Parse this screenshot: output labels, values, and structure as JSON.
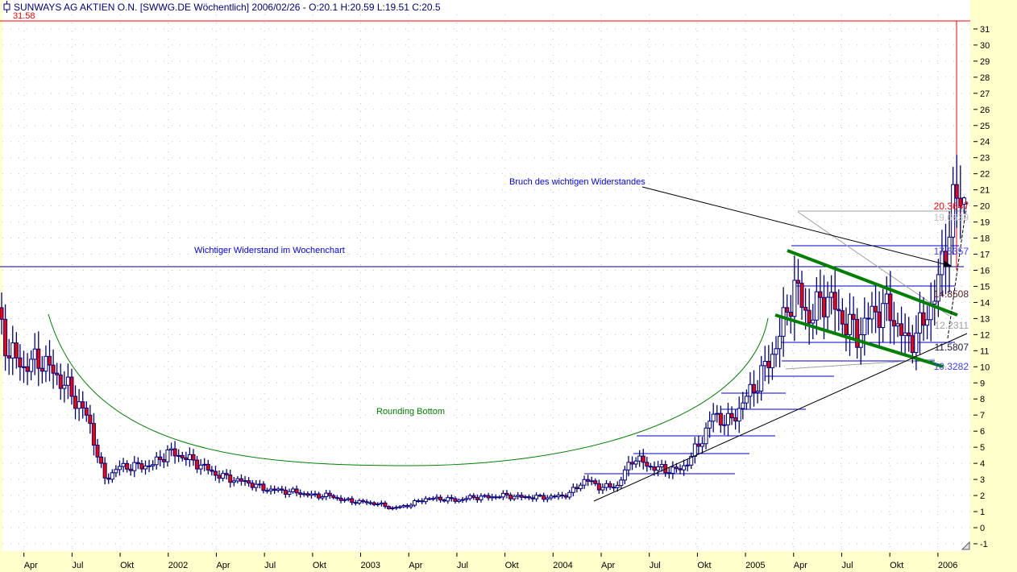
{
  "header": {
    "title": "SUNWAYS AG AKTIEN O.N. [SWWG.DE  Wöchentlich] 2006/02/26 - O:20.1 H:20.59 L:19.51 C:20.5",
    "max_label": "31.58"
  },
  "colors": {
    "up_fill": "#ffffff",
    "down_fill": "#ff0000",
    "candle_line": "#000080",
    "axis_bg": "#ffffcc",
    "trend_green": "#008000"
  },
  "annotations": {
    "resistance": "Wichtiger Widerstand im Wochenchart",
    "breakout": "Bruch des wichtigen Widerstandes",
    "rounding": "Rounding Bottom"
  },
  "levels": {
    "l1": "20.3647",
    "l2": "19.6639",
    "l3": "17.5357",
    "l4": "14.8508",
    "l5": "12.2311",
    "l6": "11.5807",
    "l7": "10.3282"
  },
  "chart_data": {
    "type": "candlestick",
    "title": "SUNWAYS AG AKTIEN O.N. [SWWG.DE  Wöchentlich]",
    "ylim": [
      -1,
      31.58
    ],
    "yticks": [
      "-1",
      "0",
      "1",
      "2",
      "3",
      "4",
      "5",
      "6",
      "7",
      "8",
      "9",
      "10",
      "11",
      "12",
      "13",
      "14",
      "15",
      "16",
      "17",
      "18",
      "19",
      "20",
      "21",
      "22",
      "23",
      "24",
      "25",
      "26",
      "27",
      "28",
      "29",
      "30",
      "31"
    ],
    "xticks": [
      {
        "label": "Apr",
        "date": "2001-04"
      },
      {
        "label": "Jul",
        "date": "2001-07"
      },
      {
        "label": "Okt",
        "date": "2001-10"
      },
      {
        "label": "2002",
        "date": "2002-01"
      },
      {
        "label": "Apr",
        "date": "2002-04"
      },
      {
        "label": "Jul",
        "date": "2002-07"
      },
      {
        "label": "Okt",
        "date": "2002-10"
      },
      {
        "label": "2003",
        "date": "2003-01"
      },
      {
        "label": "Apr",
        "date": "2003-04"
      },
      {
        "label": "Jul",
        "date": "2003-07"
      },
      {
        "label": "Okt",
        "date": "2003-10"
      },
      {
        "label": "2004",
        "date": "2004-01"
      },
      {
        "label": "Apr",
        "date": "2004-04"
      },
      {
        "label": "Jul",
        "date": "2004-07"
      },
      {
        "label": "Okt",
        "date": "2004-10"
      },
      {
        "label": "2005",
        "date": "2005-01"
      },
      {
        "label": "Apr",
        "date": "2005-04"
      },
      {
        "label": "Jul",
        "date": "2005-07"
      },
      {
        "label": "Okt",
        "date": "2005-10"
      },
      {
        "label": "2006",
        "date": "2006-01"
      }
    ],
    "monthly_close_start": "2001-02",
    "monthly_close": [
      14.5,
      11,
      10,
      10.5,
      9.5,
      8.3,
      6.8,
      3.0,
      3.8,
      3.8,
      3.9,
      4.7,
      4.4,
      3.9,
      3.3,
      3.0,
      2.8,
      2.4,
      2.3,
      2.2,
      2.0,
      2.0,
      1.7,
      1.6,
      1.5,
      1.2,
      1.4,
      1.8,
      1.8,
      1.7,
      1.9,
      1.9,
      2.0,
      1.9,
      1.9,
      1.9,
      2.1,
      3.0,
      2.5,
      2.6,
      4.4,
      3.8,
      3.6,
      3.6,
      5.0,
      7.0,
      6.5,
      8.0,
      9.5,
      11.5,
      15,
      13,
      14.5,
      13,
      12,
      13.5,
      13.5,
      11.5,
      12.5,
      15,
      20.3
    ],
    "last_bar": {
      "open": 20.1,
      "high": 20.59,
      "low": 19.51,
      "close": 20.5
    }
  }
}
